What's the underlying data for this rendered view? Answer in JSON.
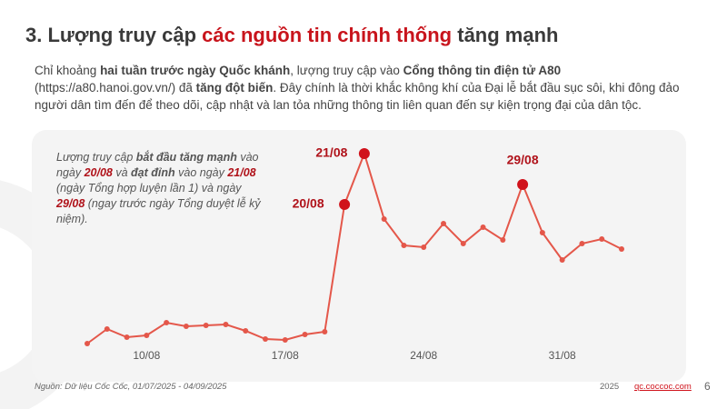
{
  "header": {
    "title": [
      {
        "text": "3. Lượng truy cập ",
        "highlight": false
      },
      {
        "text": "các nguồn tin chính thống",
        "highlight": true
      },
      {
        "text": " tăng mạnh",
        "highlight": false
      }
    ]
  },
  "intro": [
    {
      "text": "Chỉ khoảng ",
      "bold": false
    },
    {
      "text": "hai tuần trước ngày Quốc khánh",
      "bold": true
    },
    {
      "text": ", lượng truy cập vào ",
      "bold": false
    },
    {
      "text": "Cổng thông tin điện tử A80",
      "bold": true
    },
    {
      "text": " (https://a80.hanoi.gov.vn/) đã ",
      "bold": false
    },
    {
      "text": "tăng đột biến",
      "bold": true
    },
    {
      "text": ". Đây chính là thời khắc không khí của Đại lễ bắt đầu sục sôi, khi đông đảo người dân tìm đến để theo dõi, cập nhật và lan tỏa những thông tin liên quan đến sự kiện trọng đại của dân tộc.",
      "bold": false
    }
  ],
  "callout": [
    {
      "text": "Lượng truy cập ",
      "bold": false
    },
    {
      "text": "bắt đầu tăng mạnh",
      "bold": true
    },
    {
      "text": " vào ngày ",
      "bold": false
    },
    {
      "text": "20/08",
      "bold": true,
      "red": true
    },
    {
      "text": " và ",
      "bold": false
    },
    {
      "text": "đạt đỉnh",
      "bold": true
    },
    {
      "text": " vào ngày ",
      "bold": false
    },
    {
      "text": "21/08",
      "bold": true,
      "red": true
    },
    {
      "text": " (ngày Tổng hợp luyện lần 1) và ngày ",
      "bold": false
    },
    {
      "text": "29/08",
      "bold": true,
      "red": true
    },
    {
      "text": " (ngay trước ngày Tổng duyệt lễ kỷ niệm).",
      "bold": false
    }
  ],
  "chart_data": {
    "type": "line",
    "categories": [
      null,
      null,
      null,
      "10/08",
      null,
      null,
      null,
      null,
      null,
      null,
      "17/08",
      null,
      null,
      null,
      null,
      null,
      null,
      "24/08",
      null,
      null,
      null,
      null,
      null,
      null,
      "31/08",
      null,
      null,
      null
    ],
    "series": [
      {
        "name": "Lượng truy cập",
        "color": "#e4574a",
        "values": [
          1,
          9,
          4.5,
          5.5,
          12.5,
          10.5,
          11,
          11.5,
          8,
          3.5,
          3,
          6,
          7.5,
          77.5,
          105.5,
          69.5,
          55,
          54,
          67,
          56,
          65,
          58,
          88.5,
          62,
          47,
          56,
          58.5,
          53
        ]
      }
    ],
    "highlights": [
      {
        "label": "20/08",
        "index": 13
      },
      {
        "label": "21/08",
        "index": 14
      },
      {
        "label": "29/08",
        "index": 22
      }
    ],
    "highlight_color": "#d0121b",
    "ylim": [
      0,
      110
    ]
  },
  "footer": {
    "source": "Nguồn: Dữ liệu Cốc Cốc, 01/07/2025 - 04/09/2025",
    "year": "2025",
    "site": "qc.coccoc.com",
    "page": "6"
  }
}
